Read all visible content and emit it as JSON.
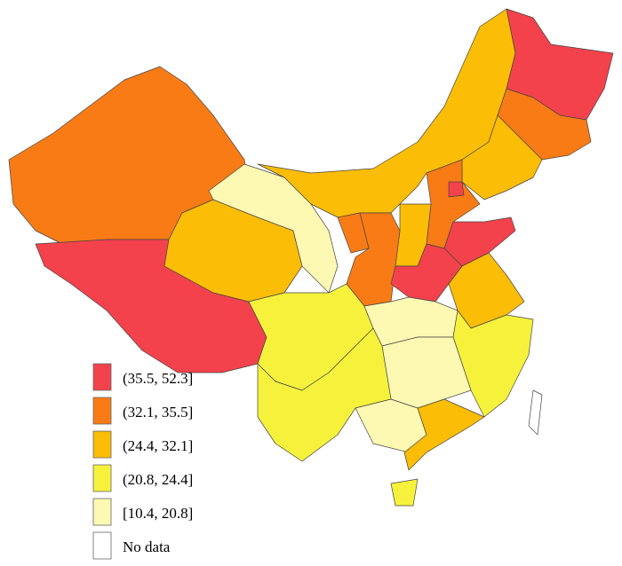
{
  "legend": {
    "items": [
      {
        "label": "(35.5, 52.3]",
        "color": "#f3424b"
      },
      {
        "label": "(32.1, 35.5]",
        "color": "#f97b15"
      },
      {
        "label": "(24.4, 32.1]",
        "color": "#fbbd06"
      },
      {
        "label": "(20.8, 24.4]",
        "color": "#f6f23c"
      },
      {
        "label": "[10.4, 20.8]",
        "color": "#fdf9b2"
      },
      {
        "label": "No data",
        "color": "#ffffff"
      }
    ]
  }
}
